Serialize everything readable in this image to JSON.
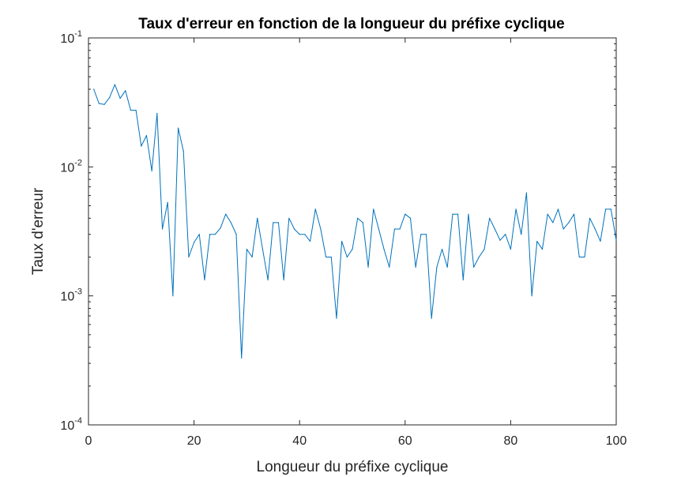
{
  "chart_data": {
    "type": "line",
    "title": "Taux d'erreur en fonction de la longueur du préfixe cyclique",
    "xlabel": "Longueur du préfixe cyclique",
    "ylabel": "Taux d'erreur",
    "xlim": [
      0,
      100
    ],
    "ylim": [
      0.0001,
      0.1
    ],
    "yscale": "log",
    "grid": false,
    "x_ticks": [
      {
        "value": 0,
        "label": "0"
      },
      {
        "value": 20,
        "label": "20"
      },
      {
        "value": 40,
        "label": "40"
      },
      {
        "value": 60,
        "label": "60"
      },
      {
        "value": 80,
        "label": "80"
      },
      {
        "value": 100,
        "label": "100"
      }
    ],
    "y_ticks": [
      {
        "value": 0.1,
        "base": "10",
        "exp": "-1"
      },
      {
        "value": 0.01,
        "base": "10",
        "exp": "-2"
      },
      {
        "value": 0.001,
        "base": "10",
        "exp": "-3"
      },
      {
        "value": 0.0001,
        "base": "10",
        "exp": "-4"
      }
    ],
    "series": [
      {
        "color": "#0072bd",
        "x": [
          1,
          2,
          3,
          4,
          5,
          6,
          7,
          8,
          9,
          10,
          11,
          12,
          13,
          14,
          15,
          16,
          17,
          18,
          19,
          20,
          21,
          22,
          23,
          24,
          25,
          26,
          27,
          28,
          29,
          30,
          31,
          32,
          33,
          34,
          35,
          36,
          37,
          38,
          39,
          40,
          41,
          42,
          43,
          44,
          45,
          46,
          47,
          48,
          49,
          50,
          51,
          52,
          53,
          54,
          55,
          56,
          57,
          58,
          59,
          60,
          61,
          62,
          63,
          64,
          65,
          66,
          67,
          68,
          69,
          70,
          71,
          72,
          73,
          74,
          75,
          76,
          77,
          78,
          79,
          80,
          81,
          82,
          83,
          84,
          85,
          86,
          87,
          88,
          89,
          90,
          91,
          92,
          93,
          94,
          95,
          96,
          97,
          98,
          99,
          100
        ],
        "y": [
          0.04,
          0.031,
          0.0305,
          0.0345,
          0.0435,
          0.034,
          0.039,
          0.0275,
          0.0275,
          0.0145,
          0.0175,
          0.0093,
          0.026,
          0.0033,
          0.0053,
          0.001,
          0.02,
          0.0132,
          0.002,
          0.0026,
          0.003,
          0.00133,
          0.003,
          0.003,
          0.00335,
          0.0043,
          0.0037,
          0.003,
          0.00033,
          0.0023,
          0.002,
          0.004,
          0.0023,
          0.00133,
          0.0037,
          0.0037,
          0.00133,
          0.004,
          0.0033,
          0.003,
          0.003,
          0.00265,
          0.0047,
          0.0033,
          0.002,
          0.002,
          0.00067,
          0.00265,
          0.002,
          0.0023,
          0.004,
          0.0037,
          0.00167,
          0.0047,
          0.0033,
          0.0023,
          0.00167,
          0.0033,
          0.0033,
          0.0043,
          0.004,
          0.00167,
          0.003,
          0.003,
          0.00067,
          0.00167,
          0.0023,
          0.00167,
          0.0043,
          0.0043,
          0.00133,
          0.0043,
          0.00167,
          0.002,
          0.0023,
          0.004,
          0.0033,
          0.0027,
          0.003,
          0.0023,
          0.0047,
          0.003,
          0.0063,
          0.001,
          0.00265,
          0.0023,
          0.0043,
          0.0037,
          0.0047,
          0.0033,
          0.0037,
          0.0043,
          0.002,
          0.002,
          0.004,
          0.0033,
          0.00265,
          0.0047,
          0.0047,
          0.0027
        ]
      }
    ]
  }
}
